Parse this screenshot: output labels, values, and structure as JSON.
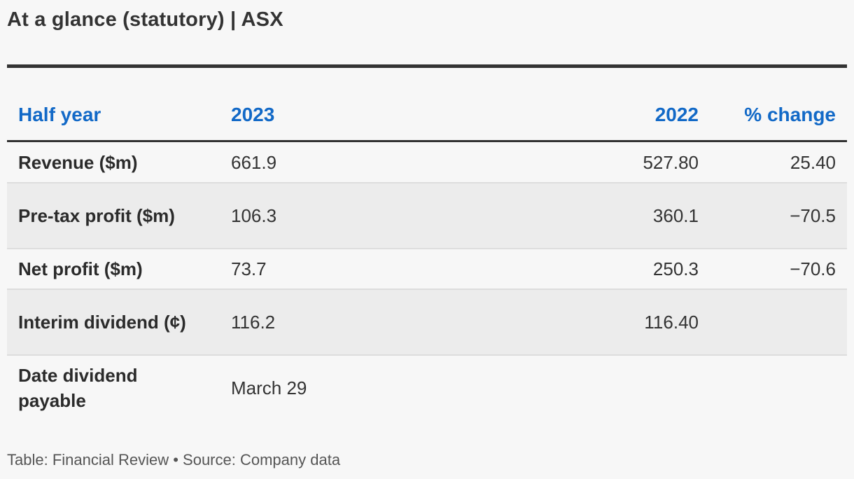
{
  "title": "At a glance (statutory) | ASX",
  "table": {
    "headers": [
      "Half year",
      "2023",
      "2022",
      "% change"
    ],
    "rows": [
      {
        "label": "Revenue ($m)",
        "v2023": "661.9",
        "v2022": "527.80",
        "pct": "25.40"
      },
      {
        "label": "Pre-tax profit ($m)",
        "v2023": "106.3",
        "v2022": "360.1",
        "pct": "−70.5"
      },
      {
        "label": "Net profit ($m)",
        "v2023": "73.7",
        "v2022": "250.3",
        "pct": "−70.6"
      },
      {
        "label": "Interim dividend (¢)",
        "v2023": "116.2",
        "v2022": "116.40",
        "pct": ""
      },
      {
        "label": "Date dividend payable",
        "v2023": "March 29",
        "v2022": "",
        "pct": ""
      }
    ]
  },
  "footer": "Table: Financial Review • Source: Company data",
  "colors": {
    "header_text": "#1269c7",
    "rule": "#333333",
    "row_shade": "#ececec",
    "background": "#f7f7f7"
  }
}
